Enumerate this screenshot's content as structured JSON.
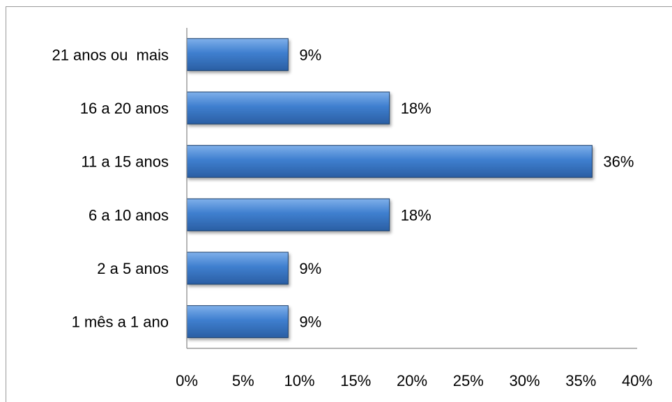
{
  "chart_data": {
    "type": "bar",
    "orientation": "horizontal",
    "categories": [
      "21 anos ou  mais",
      "16 a 20 anos",
      "11 a 15 anos",
      "6 a 10 anos",
      "2 a 5 anos",
      "1 mês a 1 ano"
    ],
    "values": [
      9,
      18,
      36,
      18,
      9,
      9
    ],
    "value_labels": [
      "9%",
      "18%",
      "36%",
      "18%",
      "9%",
      "9%"
    ],
    "xlim": [
      0,
      40
    ],
    "xticks": [
      0,
      5,
      10,
      15,
      20,
      25,
      30,
      35,
      40
    ],
    "xtick_labels": [
      "0%",
      "5%",
      "10%",
      "15%",
      "20%",
      "25%",
      "30%",
      "35%",
      "40%"
    ],
    "grid": false,
    "bar_color": "#3b78c4",
    "bar_edge": "#1f3f6b"
  }
}
